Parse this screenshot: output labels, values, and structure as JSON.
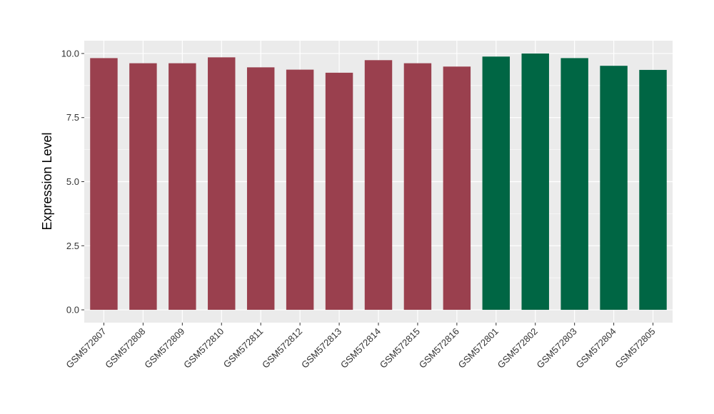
{
  "chart_data": {
    "type": "bar",
    "title": "",
    "xlabel": "",
    "ylabel": "Expression Level",
    "ylim": [
      -0.5,
      10.5
    ],
    "yticks": [
      0.0,
      2.5,
      5.0,
      7.5,
      10.0
    ],
    "ytick_labels": [
      "0.0",
      "2.5",
      "5.0",
      "7.5",
      "10.0"
    ],
    "grid": true,
    "categories": [
      "GSM572807",
      "GSM572808",
      "GSM572809",
      "GSM572810",
      "GSM572811",
      "GSM572812",
      "GSM572813",
      "GSM572814",
      "GSM572815",
      "GSM572816",
      "GSM572801",
      "GSM572802",
      "GSM572803",
      "GSM572804",
      "GSM572805"
    ],
    "values": [
      9.82,
      9.62,
      9.62,
      9.85,
      9.46,
      9.37,
      9.25,
      9.74,
      9.62,
      9.49,
      9.88,
      10.0,
      9.82,
      9.52,
      9.36
    ],
    "bar_colors": [
      "#9a404e",
      "#9a404e",
      "#9a404e",
      "#9a404e",
      "#9a404e",
      "#9a404e",
      "#9a404e",
      "#9a404e",
      "#9a404e",
      "#9a404e",
      "#006644",
      "#006644",
      "#006644",
      "#006644",
      "#006644"
    ],
    "panel_background": "#ebebeb",
    "grid_color": "#ffffff"
  }
}
